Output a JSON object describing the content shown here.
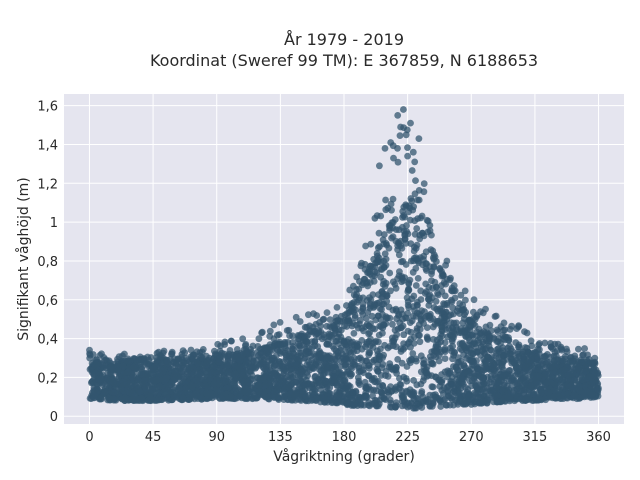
{
  "chart_data": {
    "type": "scatter",
    "title": "År 1979 - 2019",
    "subtitle": "Koordinat (Sweref 99 TM): E 367859, N 6188653",
    "xlabel": "Vågriktning (grader)",
    "ylabel": "Signifikant våghöjd (m)",
    "xlim": [
      -18,
      378
    ],
    "ylim": [
      -0.04,
      1.66
    ],
    "x_ticks": [
      0,
      45,
      90,
      135,
      180,
      225,
      270,
      315,
      360
    ],
    "x_tick_labels": [
      "0",
      "45",
      "90",
      "135",
      "180",
      "225",
      "270",
      "315",
      "360"
    ],
    "y_ticks": [
      0,
      0.2,
      0.4,
      0.6,
      0.8,
      1,
      1.2,
      1.4,
      1.6
    ],
    "y_tick_labels": [
      "0",
      "0,2",
      "0,4",
      "0,6",
      "0,8",
      "1",
      "1,2",
      "1,4",
      "1,6"
    ],
    "grid": true,
    "marker_color": "#33566f",
    "plot_background": "#e5e5ef",
    "envelope": {
      "direction": [
        0,
        20,
        45,
        90,
        120,
        150,
        170,
        180,
        190,
        200,
        210,
        220,
        225,
        230,
        240,
        250,
        260,
        270,
        285,
        300,
        315,
        330,
        345,
        360
      ],
      "min_height": [
        0.09,
        0.08,
        0.08,
        0.09,
        0.09,
        0.08,
        0.07,
        0.06,
        0.05,
        0.05,
        0.05,
        0.04,
        0.04,
        0.04,
        0.05,
        0.05,
        0.06,
        0.06,
        0.07,
        0.08,
        0.08,
        0.09,
        0.09,
        0.1
      ],
      "max_height": [
        0.33,
        0.32,
        0.33,
        0.37,
        0.45,
        0.52,
        0.55,
        0.6,
        0.78,
        1.0,
        1.3,
        1.55,
        1.58,
        1.45,
        1.1,
        0.85,
        0.7,
        0.62,
        0.52,
        0.5,
        0.42,
        0.4,
        0.38,
        0.3
      ],
      "core_height": [
        0.27,
        0.28,
        0.29,
        0.3,
        0.34,
        0.4,
        0.45,
        0.5,
        0.65,
        0.8,
        0.95,
        1.05,
        1.08,
        1.05,
        0.9,
        0.72,
        0.58,
        0.48,
        0.4,
        0.36,
        0.32,
        0.3,
        0.28,
        0.27
      ]
    },
    "extreme_points": [
      {
        "x": 222,
        "y": 1.58
      },
      {
        "x": 218,
        "y": 1.55
      },
      {
        "x": 227,
        "y": 1.51
      },
      {
        "x": 220,
        "y": 1.49
      },
      {
        "x": 224,
        "y": 1.45
      },
      {
        "x": 233,
        "y": 1.43
      },
      {
        "x": 213,
        "y": 1.41
      },
      {
        "x": 209,
        "y": 1.38
      },
      {
        "x": 229,
        "y": 1.36
      },
      {
        "x": 225,
        "y": 1.34
      },
      {
        "x": 215,
        "y": 1.33
      },
      {
        "x": 230,
        "y": 1.31
      },
      {
        "x": 205,
        "y": 1.29
      },
      {
        "x": 0,
        "y": 0.34
      }
    ]
  }
}
